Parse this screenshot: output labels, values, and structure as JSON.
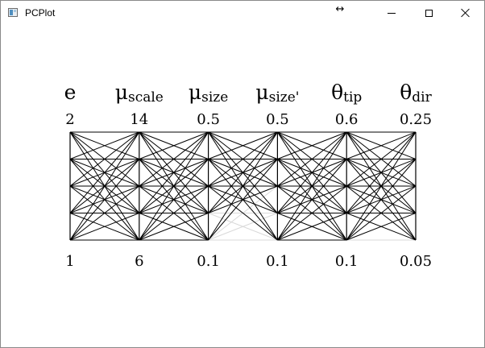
{
  "window": {
    "title": "PCPlot",
    "resize_symbol": "↔",
    "controls": [
      "minimize-icon",
      "maximize-icon",
      "close-icon"
    ]
  },
  "chart_data": {
    "type": "parallel-coordinates",
    "axes": [
      {
        "symbol": "e",
        "subscript": "",
        "max": "2",
        "min": "1",
        "levels": 5
      },
      {
        "symbol": "μ",
        "subscript": "scale",
        "max": "14",
        "min": "6",
        "levels": 5
      },
      {
        "symbol": "μ",
        "subscript": "size",
        "max": "0.5",
        "min": "0.1",
        "levels": 5
      },
      {
        "symbol": "μ",
        "subscript": "size'",
        "max": "0.5",
        "min": "0.1",
        "levels": 5
      },
      {
        "symbol": "θ",
        "subscript": "tip",
        "max": "0.6",
        "min": "0.1",
        "levels": 5
      },
      {
        "symbol": "θ",
        "subscript": "dir",
        "max": "0.25",
        "min": "0.05",
        "levels": 5
      }
    ],
    "line_color": "#000000",
    "faded_line_color": "#d9d9d9",
    "faded_links": [
      {
        "from_axis": 2,
        "from_level": 0,
        "to_axis": 3,
        "to_level": 0
      },
      {
        "from_axis": 2,
        "from_level": 0,
        "to_axis": 3,
        "to_level": 1
      },
      {
        "from_axis": 2,
        "from_level": 1,
        "to_axis": 3,
        "to_level": 0
      },
      {
        "from_axis": 2,
        "from_level": 1,
        "to_axis": 3,
        "to_level": 1
      },
      {
        "from_axis": 2,
        "from_level": 0,
        "to_axis": 3,
        "to_level": 2
      },
      {
        "from_axis": 4,
        "from_level": 0,
        "to_axis": 5,
        "to_level": 0
      }
    ]
  }
}
